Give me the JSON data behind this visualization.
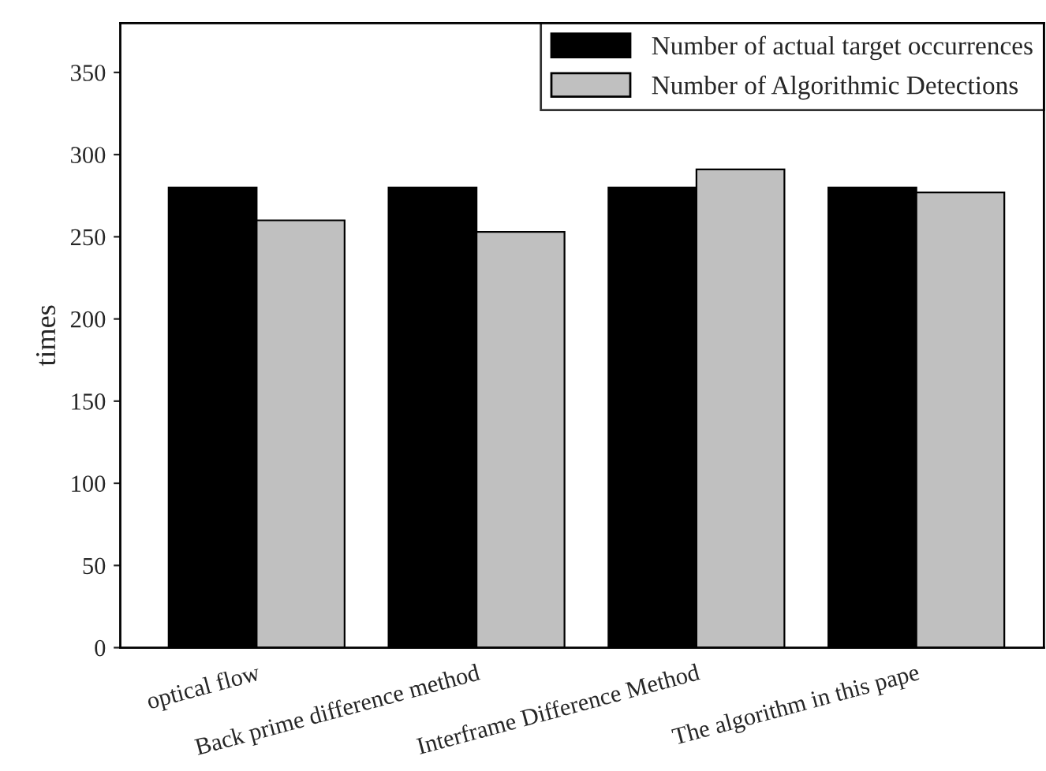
{
  "chart_data": {
    "type": "bar",
    "ylabel": "times",
    "categories": [
      "optical flow",
      "Back prime difference method",
      "Interframe Difference Method",
      "The algorithm in this pape"
    ],
    "series": [
      {
        "name": "Number of actual target occurrences",
        "color": "#000000",
        "values": [
          280,
          280,
          280,
          280
        ]
      },
      {
        "name": "Number of Algorithmic Detections",
        "color": "#c0c0c0",
        "values": [
          260,
          253,
          291,
          277
        ]
      }
    ],
    "ylim": [
      0,
      380
    ],
    "yticks": [
      0,
      50,
      100,
      150,
      200,
      250,
      300,
      350
    ],
    "grid": false,
    "legend": "top right"
  }
}
